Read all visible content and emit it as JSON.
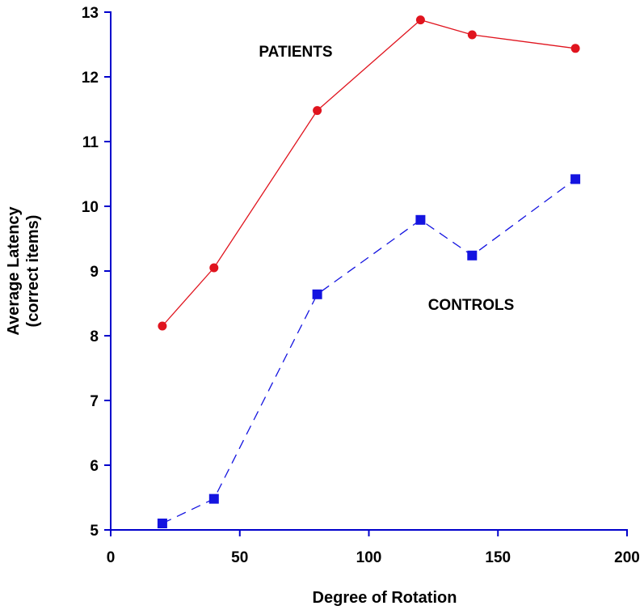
{
  "chart_data": {
    "type": "line",
    "xlabel": "Degree of Rotation",
    "ylabel_lines": [
      "Average Latency",
      "(correct items)"
    ],
    "xlim": [
      0,
      200
    ],
    "ylim": [
      5,
      13
    ],
    "xticks": [
      0,
      50,
      100,
      150,
      200
    ],
    "yticks": [
      5,
      6,
      7,
      8,
      9,
      10,
      11,
      12,
      13
    ],
    "grid": false,
    "axis_color": "#0000cc",
    "series": [
      {
        "name": "PATIENTS",
        "color": "#e0141e",
        "marker": "circle",
        "line_style": "solid",
        "x": [
          20,
          40,
          80,
          120,
          140,
          180
        ],
        "y": [
          8.15,
          9.05,
          11.48,
          12.88,
          12.65,
          12.44
        ]
      },
      {
        "name": "CONTROLS",
        "color": "#1414e0",
        "marker": "square",
        "line_style": "dashed",
        "x": [
          20,
          40,
          80,
          120,
          140,
          180
        ],
        "y": [
          5.1,
          5.48,
          8.64,
          9.79,
          9.24,
          10.42
        ]
      }
    ]
  }
}
